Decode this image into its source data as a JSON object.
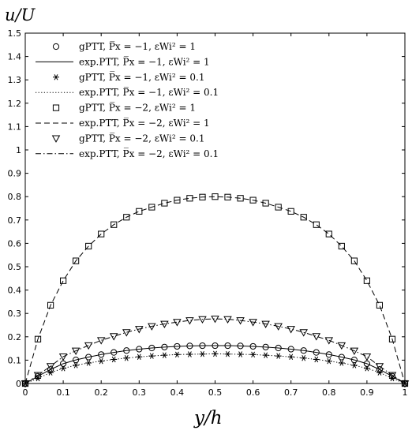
{
  "chart_data": {
    "type": "line",
    "ylabel": "u/U",
    "xlabel": "y/h",
    "xlim": [
      0,
      1
    ],
    "ylim": [
      0,
      1.5
    ],
    "xticks": [
      0,
      0.1,
      0.2,
      0.3,
      0.4,
      0.5,
      0.6,
      0.7,
      0.8,
      0.9,
      1
    ],
    "xtick_labels": [
      "0",
      "0.1",
      "0.2",
      "0.3",
      "0.4",
      "0.5",
      "0.6",
      "0.7",
      "0.8",
      "0.9",
      "1"
    ],
    "yticks": [
      0,
      0.1,
      0.2,
      0.3,
      0.4,
      0.5,
      0.6,
      0.7,
      0.8,
      0.9,
      1,
      1.1,
      1.2,
      1.3,
      1.4,
      1.5
    ],
    "ytick_labels": [
      "0",
      "0.1",
      "0.2",
      "0.3",
      "0.4",
      "0.5",
      "0.6",
      "0.7",
      "0.8",
      "0.9",
      "1",
      "1.1",
      "1.2",
      "1.3",
      "1.4",
      "1.5"
    ],
    "legend_placement": "top-left",
    "grid": false,
    "x": [
      0,
      0.0333,
      0.0667,
      0.1,
      0.1333,
      0.1667,
      0.2,
      0.2333,
      0.2667,
      0.3,
      0.3333,
      0.3667,
      0.4,
      0.4333,
      0.4667,
      0.5,
      0.5333,
      0.5667,
      0.6,
      0.6333,
      0.6667,
      0.7,
      0.7333,
      0.7667,
      0.8,
      0.8333,
      0.8667,
      0.9,
      0.9333,
      0.9667,
      1
    ],
    "series": [
      {
        "name": "gPTT, P̅x = −1, εWi² = 1",
        "style": "circle-markers",
        "values": [
          0,
          0.031,
          0.06,
          0.085,
          0.101,
          0.113,
          0.124,
          0.133,
          0.141,
          0.147,
          0.152,
          0.156,
          0.159,
          0.161,
          0.162,
          0.162,
          0.162,
          0.161,
          0.159,
          0.156,
          0.152,
          0.147,
          0.141,
          0.133,
          0.124,
          0.113,
          0.101,
          0.085,
          0.06,
          0.031,
          0
        ]
      },
      {
        "name": "exp.PTT, P̅x = −1, εWi² = 1",
        "style": "solid-line",
        "values": [
          0,
          0.031,
          0.06,
          0.085,
          0.101,
          0.113,
          0.124,
          0.133,
          0.141,
          0.147,
          0.152,
          0.156,
          0.159,
          0.161,
          0.162,
          0.162,
          0.162,
          0.161,
          0.159,
          0.156,
          0.152,
          0.147,
          0.141,
          0.133,
          0.124,
          0.113,
          0.101,
          0.085,
          0.06,
          0.031,
          0
        ]
      },
      {
        "name": "gPTT, P̅x = −1, εWi² = 0.1",
        "style": "asterisk-markers",
        "values": [
          0,
          0.022,
          0.047,
          0.065,
          0.078,
          0.088,
          0.096,
          0.103,
          0.109,
          0.114,
          0.118,
          0.121,
          0.124,
          0.125,
          0.126,
          0.127,
          0.126,
          0.125,
          0.124,
          0.121,
          0.118,
          0.114,
          0.109,
          0.103,
          0.096,
          0.088,
          0.078,
          0.065,
          0.047,
          0.022,
          0
        ]
      },
      {
        "name": "exp.PTT, P̅x = −1, εWi² = 0.1",
        "style": "dotted-line",
        "values": [
          0,
          0.022,
          0.047,
          0.065,
          0.078,
          0.088,
          0.096,
          0.103,
          0.109,
          0.114,
          0.118,
          0.121,
          0.124,
          0.125,
          0.126,
          0.127,
          0.126,
          0.125,
          0.124,
          0.121,
          0.118,
          0.114,
          0.109,
          0.103,
          0.096,
          0.088,
          0.078,
          0.065,
          0.047,
          0.022,
          0
        ]
      },
      {
        "name": "gPTT, P̅x = −2, εWi² = 1",
        "style": "square-markers",
        "values": [
          0,
          0.19,
          0.335,
          0.44,
          0.525,
          0.588,
          0.64,
          0.68,
          0.712,
          0.737,
          0.755,
          0.772,
          0.785,
          0.793,
          0.798,
          0.8,
          0.798,
          0.793,
          0.785,
          0.772,
          0.755,
          0.737,
          0.712,
          0.68,
          0.64,
          0.588,
          0.525,
          0.44,
          0.335,
          0.19,
          0
        ]
      },
      {
        "name": "exp.PTT, P̅x = −2, εWi² = 1",
        "style": "dashed-line",
        "values": [
          0,
          0.19,
          0.335,
          0.44,
          0.525,
          0.588,
          0.64,
          0.68,
          0.712,
          0.737,
          0.755,
          0.772,
          0.785,
          0.793,
          0.798,
          0.8,
          0.798,
          0.793,
          0.785,
          0.772,
          0.755,
          0.737,
          0.712,
          0.68,
          0.64,
          0.588,
          0.525,
          0.44,
          0.335,
          0.19,
          0
        ]
      },
      {
        "name": "gPTT, P̅x = −2, εWi² = 0.1",
        "style": "triangle-down-markers",
        "values": [
          0,
          0.036,
          0.074,
          0.115,
          0.14,
          0.163,
          0.185,
          0.202,
          0.219,
          0.233,
          0.245,
          0.255,
          0.263,
          0.27,
          0.275,
          0.277,
          0.275,
          0.27,
          0.263,
          0.255,
          0.245,
          0.233,
          0.219,
          0.202,
          0.185,
          0.163,
          0.14,
          0.115,
          0.074,
          0.036,
          0
        ]
      },
      {
        "name": "exp.PTT, P̅x = −2, εWi² = 0.1",
        "style": "dashdot-line",
        "values": [
          0,
          0.036,
          0.074,
          0.115,
          0.14,
          0.163,
          0.185,
          0.202,
          0.219,
          0.233,
          0.245,
          0.255,
          0.263,
          0.27,
          0.275,
          0.277,
          0.275,
          0.27,
          0.263,
          0.255,
          0.245,
          0.233,
          0.219,
          0.202,
          0.185,
          0.163,
          0.14,
          0.115,
          0.074,
          0.036,
          0
        ]
      }
    ]
  }
}
